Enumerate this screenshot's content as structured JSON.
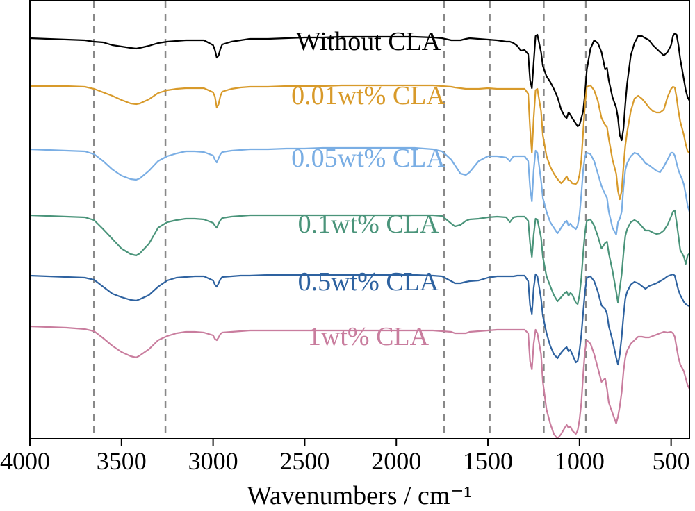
{
  "chart_data": {
    "type": "line",
    "xlabel": "Wavenumbers / cm⁻¹",
    "xlim": [
      4000,
      400
    ],
    "x_reversed": true,
    "xticks": [
      4000,
      3500,
      3000,
      2500,
      2000,
      1500,
      1000,
      500
    ],
    "yticks_visible": false,
    "grid": false,
    "reference_lines_x": [
      3650,
      3260,
      1740,
      1490,
      1195,
      965
    ],
    "reference_line_style": "dashed-gray",
    "series_x": [
      4000,
      3900,
      3800,
      3700,
      3650,
      3600,
      3550,
      3500,
      3450,
      3420,
      3400,
      3350,
      3300,
      3250,
      3200,
      3150,
      3100,
      3050,
      3000,
      2990,
      2980,
      2970,
      2960,
      2950,
      2900,
      2850,
      2800,
      2700,
      2600,
      2500,
      2400,
      2300,
      2200,
      2100,
      2000,
      1900,
      1800,
      1750,
      1700,
      1680,
      1650,
      1620,
      1600,
      1550,
      1500,
      1450,
      1400,
      1380,
      1360,
      1340,
      1320,
      1300,
      1280,
      1270,
      1260,
      1250,
      1240,
      1230,
      1210,
      1200,
      1180,
      1160,
      1140,
      1120,
      1100,
      1080,
      1070,
      1060,
      1050,
      1040,
      1020,
      1010,
      1000,
      990,
      980,
      970,
      960,
      940,
      920,
      900,
      880,
      860,
      850,
      840,
      820,
      800,
      790,
      780,
      770,
      760,
      750,
      740,
      720,
      700,
      680,
      660,
      640,
      620,
      600,
      580,
      560,
      540,
      520,
      500,
      490,
      480,
      470,
      460,
      450,
      440,
      430,
      420,
      410,
      400
    ],
    "series": [
      {
        "name": "Without CLA",
        "color": "#000000",
        "offset": 0,
        "values": [
          35,
          36,
          37,
          38,
          40,
          41,
          45,
          47,
          49,
          50,
          49,
          46,
          42,
          40,
          39,
          38,
          38,
          38,
          45,
          52,
          63,
          60,
          50,
          44,
          40,
          38,
          36,
          36,
          35,
          34,
          34,
          33,
          33,
          33,
          33,
          33,
          34,
          35,
          38,
          38,
          38,
          36,
          35,
          36,
          37,
          38,
          40,
          40,
          42,
          46,
          53,
          52,
          58,
          95,
          107,
          70,
          32,
          30,
          55,
          75,
          90,
          98,
          108,
          120,
          138,
          148,
          150,
          142,
          145,
          150,
          158,
          162,
          160,
          150,
          140,
          115,
          80,
          50,
          38,
          42,
          55,
          80,
          78,
          96,
          120,
          135,
          150,
          175,
          182,
          165,
          130,
          100,
          60,
          42,
          32,
          32,
          35,
          38,
          45,
          50,
          55,
          60,
          55,
          45,
          32,
          28,
          30,
          45,
          65,
          80,
          95,
          110,
          120,
          125
        ]
      },
      {
        "name": "0.01wt% CLA",
        "color": "#D89A2A",
        "offset": 0,
        "values": [
          104,
          104,
          104,
          105,
          108,
          113,
          118,
          124,
          129,
          130,
          129,
          123,
          114,
          110,
          108,
          107,
          107,
          107,
          113,
          119,
          135,
          130,
          118,
          112,
          108,
          106,
          105,
          105,
          104,
          104,
          104,
          103,
          103,
          103,
          103,
          103,
          103,
          104,
          105,
          106,
          107,
          108,
          108,
          108,
          107,
          108,
          108,
          108,
          108,
          108,
          108,
          108,
          115,
          165,
          200,
          150,
          110,
          108,
          140,
          175,
          205,
          220,
          230,
          238,
          244,
          238,
          234,
          240,
          240,
          244,
          245,
          242,
          232,
          210,
          170,
          130,
          105,
          103,
          110,
          125,
          150,
          160,
          163,
          180,
          210,
          230,
          255,
          267,
          255,
          220,
          190,
          170,
          140,
          122,
          118,
          122,
          128,
          135,
          140,
          142,
          142,
          138,
          120,
          108,
          105,
          106,
          120,
          140,
          155,
          165,
          175,
          188,
          198,
          200
        ]
      },
      {
        "name": "0.05wt% CLA",
        "color": "#7AAEE4",
        "offset": 0,
        "values": [
          195,
          196,
          197,
          198,
          202,
          212,
          224,
          233,
          238,
          239,
          237,
          226,
          212,
          205,
          201,
          198,
          198,
          199,
          204,
          210,
          214,
          208,
          202,
          199,
          197,
          196,
          195,
          195,
          194,
          194,
          193,
          193,
          193,
          193,
          193,
          193,
          195,
          198,
          210,
          218,
          230,
          232,
          228,
          212,
          205,
          205,
          207,
          212,
          205,
          205,
          205,
          205,
          212,
          250,
          270,
          225,
          197,
          200,
          240,
          265,
          285,
          300,
          308,
          316,
          308,
          300,
          298,
          305,
          302,
          306,
          310,
          305,
          290,
          260,
          225,
          205,
          200,
          202,
          212,
          230,
          248,
          260,
          265,
          285,
          308,
          318,
          300,
          295,
          285,
          250,
          225,
          215,
          205,
          200,
          202,
          208,
          215,
          218,
          222,
          226,
          228,
          220,
          210,
          200,
          200,
          204,
          215,
          225,
          232,
          238,
          246,
          260,
          276,
          285
        ]
      },
      {
        "name": "0.1wt% CLA",
        "color": "#4A947A",
        "offset": 0,
        "values": [
          290,
          291,
          292,
          293,
          297,
          310,
          324,
          338,
          346,
          348,
          345,
          331,
          308,
          300,
          297,
          295,
          295,
          296,
          301,
          305,
          308,
          302,
          297,
          294,
          292,
          291,
          290,
          290,
          290,
          290,
          290,
          290,
          290,
          290,
          290,
          290,
          290,
          291,
          302,
          306,
          304,
          298,
          296,
          295,
          293,
          292,
          293,
          300,
          293,
          292,
          292,
          292,
          298,
          330,
          350,
          318,
          295,
          296,
          322,
          350,
          378,
          392,
          405,
          414,
          408,
          402,
          400,
          406,
          402,
          404,
          416,
          418,
          405,
          380,
          345,
          315,
          298,
          296,
          305,
          320,
          338,
          330,
          328,
          345,
          370,
          400,
          416,
          395,
          375,
          345,
          320,
          310,
          300,
          297,
          300,
          306,
          312,
          312,
          315,
          317,
          316,
          312,
          304,
          292,
          285,
          283,
          300,
          320,
          340,
          345,
          350,
          360,
          348,
          345
        ]
      },
      {
        "name": "0.5wt% CLA",
        "color": "#2E62A0",
        "offset": 0,
        "values": [
          377,
          378,
          379,
          380,
          383,
          393,
          403,
          408,
          412,
          413,
          411,
          405,
          393,
          384,
          380,
          379,
          378,
          378,
          384,
          390,
          393,
          388,
          382,
          379,
          378,
          377,
          377,
          376,
          376,
          376,
          376,
          376,
          376,
          376,
          376,
          376,
          377,
          378,
          385,
          388,
          388,
          386,
          385,
          384,
          380,
          378,
          378,
          378,
          378,
          377,
          377,
          377,
          385,
          420,
          432,
          395,
          375,
          378,
          410,
          435,
          460,
          478,
          490,
          496,
          488,
          482,
          480,
          486,
          484,
          490,
          502,
          500,
          485,
          462,
          430,
          400,
          380,
          378,
          385,
          400,
          420,
          425,
          432,
          450,
          470,
          495,
          505,
          490,
          465,
          435,
          410,
          400,
          390,
          386,
          388,
          392,
          396,
          392,
          390,
          388,
          385,
          382,
          378,
          376,
          375,
          377,
          388,
          398,
          405,
          410,
          415,
          418,
          420,
          421
        ]
      },
      {
        "name": "1wt% CLA",
        "color": "#C97D9E",
        "offset": 0,
        "values": [
          450,
          451,
          452,
          454,
          457,
          467,
          478,
          487,
          493,
          495,
          492,
          483,
          470,
          464,
          460,
          458,
          458,
          459,
          463,
          468,
          470,
          466,
          461,
          459,
          458,
          457,
          456,
          456,
          456,
          456,
          456,
          456,
          456,
          456,
          456,
          456,
          456,
          457,
          458,
          460,
          460,
          460,
          458,
          457,
          456,
          455,
          455,
          455,
          455,
          455,
          455,
          455,
          460,
          500,
          512,
          475,
          455,
          460,
          490,
          530,
          570,
          590,
          605,
          612,
          605,
          596,
          592,
          596,
          594,
          600,
          605,
          600,
          585,
          560,
          520,
          485,
          470,
          475,
          490,
          510,
          530,
          525,
          540,
          560,
          575,
          590,
          580,
          565,
          545,
          515,
          495,
          485,
          475,
          470,
          465,
          465,
          466,
          466,
          464,
          462,
          460,
          458,
          459,
          458,
          460,
          465,
          480,
          495,
          505,
          510,
          515,
          525,
          535,
          540
        ]
      }
    ]
  }
}
